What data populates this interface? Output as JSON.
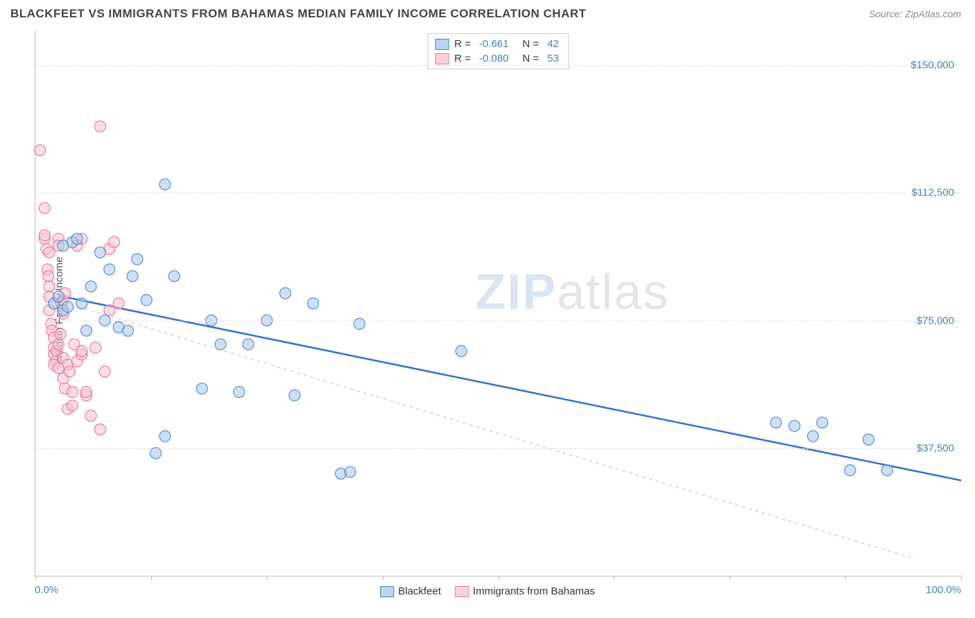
{
  "title": "BLACKFEET VS IMMIGRANTS FROM BAHAMAS MEDIAN FAMILY INCOME CORRELATION CHART",
  "source": "Source: ZipAtlas.com",
  "watermark_zip": "ZIP",
  "watermark_atlas": "atlas",
  "y_axis_title": "Median Family Income",
  "x_min_label": "0.0%",
  "x_max_label": "100.0%",
  "chart": {
    "type": "scatter",
    "xlim": [
      0,
      100
    ],
    "ylim": [
      0,
      160000
    ],
    "x_ticks": [
      0,
      12.5,
      25,
      37.5,
      50,
      62.5,
      75,
      87.5,
      100
    ],
    "y_grid": [
      {
        "value": 37500,
        "label": "$37,500"
      },
      {
        "value": 75000,
        "label": "$75,000"
      },
      {
        "value": 112500,
        "label": "$112,500"
      },
      {
        "value": 150000,
        "label": "$150,000"
      }
    ],
    "background_color": "#ffffff",
    "grid_color": "#dddddd",
    "axis_color": "#bbbbbb",
    "tick_label_color": "#4a7ebb",
    "marker_radius": 8,
    "marker_opacity": 0.55,
    "marker_stroke_width": 1.2,
    "series": [
      {
        "name": "Blackfeet",
        "color_fill": "#a8c6ec",
        "color_stroke": "#5b8bd4",
        "legend_swatch_fill": "#bcd4f0",
        "legend_swatch_border": "#4a7ebb",
        "R": "-0.661",
        "N": "42",
        "trend": {
          "x1": 3,
          "y1": 82000,
          "x2": 100,
          "y2": 28000,
          "color": "#2f6fd0",
          "width": 2.5,
          "dash": "none"
        },
        "points": [
          [
            2,
            80000
          ],
          [
            2.5,
            82000
          ],
          [
            3,
            78000
          ],
          [
            3.5,
            79000
          ],
          [
            3,
            97000
          ],
          [
            4,
            98000
          ],
          [
            4.5,
            99000
          ],
          [
            5,
            80000
          ],
          [
            5.5,
            72000
          ],
          [
            6,
            85000
          ],
          [
            7,
            95000
          ],
          [
            7.5,
            75000
          ],
          [
            8,
            90000
          ],
          [
            9,
            73000
          ],
          [
            10,
            72000
          ],
          [
            10.5,
            88000
          ],
          [
            11,
            93000
          ],
          [
            12,
            81000
          ],
          [
            13,
            36000
          ],
          [
            14,
            115000
          ],
          [
            14,
            41000
          ],
          [
            15,
            88000
          ],
          [
            18,
            55000
          ],
          [
            19,
            75000
          ],
          [
            20,
            68000
          ],
          [
            22,
            54000
          ],
          [
            23,
            68000
          ],
          [
            25,
            75000
          ],
          [
            27,
            83000
          ],
          [
            28,
            53000
          ],
          [
            30,
            80000
          ],
          [
            33,
            30000
          ],
          [
            34,
            30500
          ],
          [
            35,
            74000
          ],
          [
            46,
            66000
          ],
          [
            80,
            45000
          ],
          [
            82,
            44000
          ],
          [
            84,
            41000
          ],
          [
            85,
            45000
          ],
          [
            88,
            31000
          ],
          [
            90,
            40000
          ],
          [
            92,
            31000
          ]
        ]
      },
      {
        "name": "Immigrants from Bahamas",
        "color_fill": "#f7c4d0",
        "color_stroke": "#e87a9a",
        "legend_swatch_fill": "#fad2dc",
        "legend_swatch_border": "#e87a9a",
        "R": "-0.080",
        "N": "53",
        "trend": {
          "x1": 1,
          "y1": 82000,
          "x2": 95,
          "y2": 5000,
          "color": "#f0a8b8",
          "width": 1,
          "dash": "5,5"
        },
        "points": [
          [
            0.5,
            125000
          ],
          [
            1,
            108000
          ],
          [
            1,
            99000
          ],
          [
            1,
            100000
          ],
          [
            1.2,
            96000
          ],
          [
            1.3,
            90000
          ],
          [
            1.4,
            88000
          ],
          [
            1.5,
            85000
          ],
          [
            1.5,
            82000
          ],
          [
            1.5,
            78000
          ],
          [
            1.7,
            74000
          ],
          [
            1.8,
            72000
          ],
          [
            2,
            70000
          ],
          [
            2,
            67000
          ],
          [
            2,
            65000
          ],
          [
            2.2,
            63000
          ],
          [
            2.3,
            66000
          ],
          [
            2.5,
            68000
          ],
          [
            2.5,
            99000
          ],
          [
            2.5,
            97000
          ],
          [
            2.7,
            71000
          ],
          [
            2.8,
            80000
          ],
          [
            3,
            77000
          ],
          [
            3,
            64000
          ],
          [
            3,
            58000
          ],
          [
            3.2,
            55000
          ],
          [
            3.5,
            49000
          ],
          [
            3.5,
            62000
          ],
          [
            3.7,
            60000
          ],
          [
            4,
            54000
          ],
          [
            4,
            50000
          ],
          [
            4.2,
            68000
          ],
          [
            4.5,
            63000
          ],
          [
            4.5,
            97000
          ],
          [
            5,
            65000
          ],
          [
            5,
            99000
          ],
          [
            5,
            66000
          ],
          [
            5.5,
            53000
          ],
          [
            5.5,
            54000
          ],
          [
            6,
            47000
          ],
          [
            6.5,
            67000
          ],
          [
            7,
            43000
          ],
          [
            7,
            132000
          ],
          [
            7.5,
            60000
          ],
          [
            8,
            78000
          ],
          [
            8,
            96000
          ],
          [
            8.5,
            98000
          ],
          [
            9,
            80000
          ],
          [
            2,
            62000
          ],
          [
            2.5,
            61000
          ],
          [
            3,
            81000
          ],
          [
            3.2,
            83000
          ],
          [
            1.5,
            95000
          ]
        ]
      }
    ]
  },
  "legend_labels": {
    "R_prefix": "R =",
    "N_prefix": "N ="
  }
}
